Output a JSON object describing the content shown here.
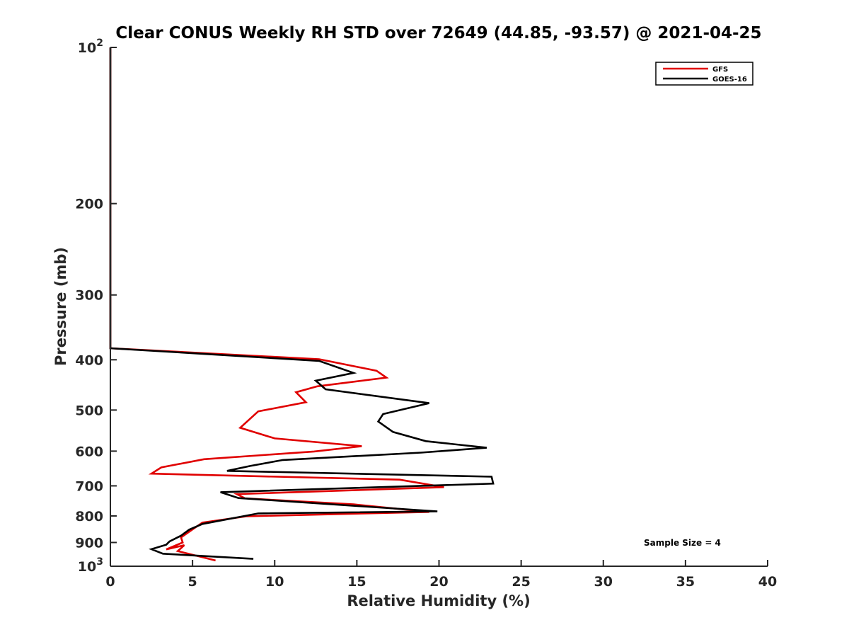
{
  "chart_data": {
    "type": "line",
    "title": "Clear CONUS Weekly RH STD over 72649 (44.85, -93.57) @ 2021-04-25",
    "xlabel": "Relative Humidity (%)",
    "ylabel": "Pressure (mb)",
    "xlim": [
      0,
      40
    ],
    "ylim": [
      100,
      1000
    ],
    "y_scale": "log",
    "y_reversed": true,
    "x_ticks": [
      "0",
      "5",
      "10",
      "15",
      "20",
      "25",
      "30",
      "35",
      "40"
    ],
    "x_tick_values": [
      0,
      5,
      10,
      15,
      20,
      25,
      30,
      35,
      40
    ],
    "y_ticks": [
      {
        "value": 100,
        "base": "10",
        "exp": "2"
      },
      {
        "value": 200,
        "label": "200"
      },
      {
        "value": 300,
        "label": "300"
      },
      {
        "value": 400,
        "label": "400"
      },
      {
        "value": 500,
        "label": "500"
      },
      {
        "value": 600,
        "label": "600"
      },
      {
        "value": 700,
        "label": "700"
      },
      {
        "value": 800,
        "label": "800"
      },
      {
        "value": 900,
        "label": "900"
      },
      {
        "value": 1000,
        "base": "10",
        "exp": "3"
      }
    ],
    "legend_position": "top-right",
    "annotation": "Sample Size = 4",
    "grid": false,
    "series": [
      {
        "name": "GFS",
        "color": "#e00000",
        "x": [
          0,
          0,
          0,
          12.7,
          16.2,
          16.8,
          12.6,
          11.3,
          11.9,
          9.0,
          7.9,
          10.0,
          15.3,
          12.4,
          5.7,
          3.1,
          2.5,
          17.6,
          20.3,
          7.7,
          8.2,
          14.8,
          19.4,
          8.3,
          5.6,
          5.1,
          4.3,
          4.4,
          3.4,
          4.5,
          4.1,
          6.4
        ],
        "y": [
          100,
          200,
          380,
          399,
          420,
          433,
          450,
          462,
          483,
          503,
          541,
          567,
          587,
          601,
          622,
          645,
          663,
          681,
          704,
          726,
          740,
          760,
          786,
          801,
          824,
          845,
          880,
          900,
          928,
          911,
          935,
          975
        ]
      },
      {
        "name": "GOES-16",
        "color": "#000000",
        "x": [
          0,
          0,
          0,
          12.7,
          14.8,
          12.5,
          13.1,
          19.4,
          16.6,
          16.3,
          17.2,
          19.2,
          22.9,
          18.9,
          10.5,
          8.5,
          7.1,
          23.2,
          23.3,
          6.7,
          7.8,
          19.9,
          9.0,
          5.6,
          4.8,
          4.3,
          3.6,
          3.4,
          2.5,
          3.2,
          8.7
        ],
        "y": [
          100,
          200,
          380,
          402,
          424,
          439,
          456,
          485,
          509,
          526,
          551,
          574,
          591,
          604,
          624,
          641,
          655,
          672,
          693,
          720,
          739,
          784,
          791,
          829,
          850,
          873,
          896,
          909,
          927,
          946,
          968
        ]
      }
    ]
  }
}
